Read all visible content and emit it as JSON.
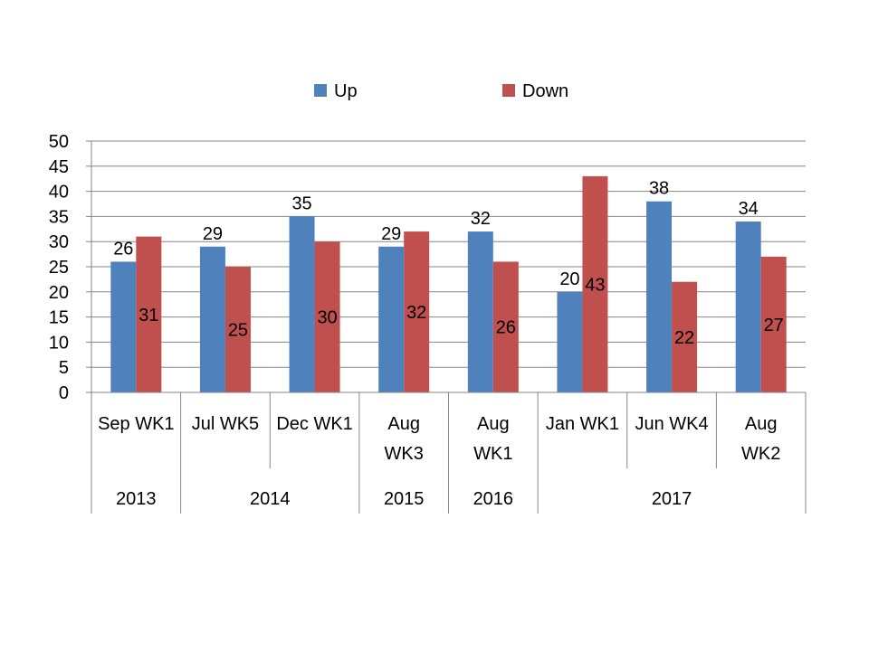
{
  "chart_data": {
    "type": "bar",
    "legend_position": "top",
    "grid": true,
    "ylim": [
      0,
      50
    ],
    "y_ticks": [
      "0",
      "5",
      "10",
      "15",
      "20",
      "25",
      "30",
      "35",
      "40",
      "45",
      "50"
    ],
    "categories": [
      {
        "lines": [
          "Sep WK1"
        ]
      },
      {
        "lines": [
          "Jul  WK5"
        ]
      },
      {
        "lines": [
          "Dec WK1"
        ]
      },
      {
        "lines": [
          "Aug",
          "WK3"
        ]
      },
      {
        "lines": [
          "Aug",
          "WK1"
        ]
      },
      {
        "lines": [
          "Jan WK1"
        ]
      },
      {
        "lines": [
          "Jun WK4"
        ]
      },
      {
        "lines": [
          "Aug",
          "WK2"
        ]
      }
    ],
    "groups": [
      {
        "label": "2013",
        "start": 0,
        "end": 0
      },
      {
        "label": "2014",
        "start": 1,
        "end": 2
      },
      {
        "label": "2015",
        "start": 3,
        "end": 3
      },
      {
        "label": "2016",
        "start": 4,
        "end": 4
      },
      {
        "label": "2017",
        "start": 5,
        "end": 7
      }
    ],
    "series": [
      {
        "name": "Up",
        "color": "#4F81BD",
        "values": [
          26,
          29,
          35,
          29,
          32,
          20,
          38,
          34
        ]
      },
      {
        "name": "Down",
        "color": "#C0504D",
        "values": [
          31,
          25,
          30,
          32,
          26,
          43,
          22,
          27
        ]
      }
    ]
  }
}
